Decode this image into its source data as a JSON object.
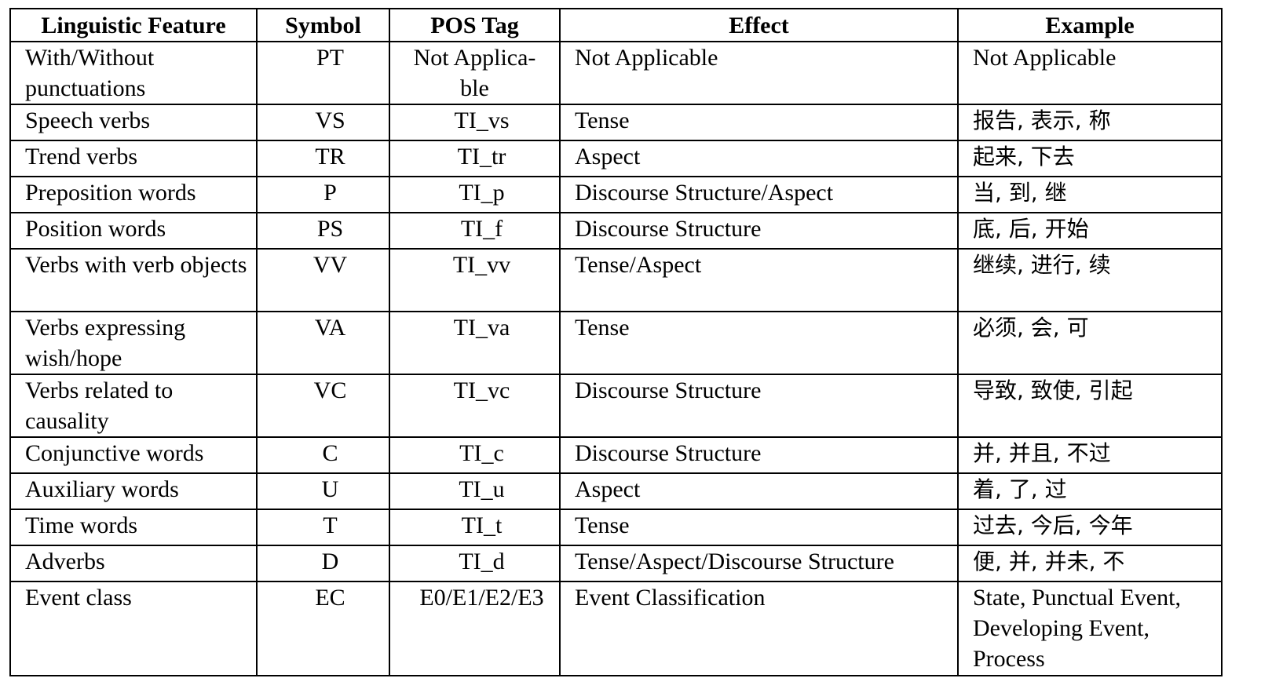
{
  "table": {
    "headers": [
      "Linguistic Feature",
      "Symbol",
      "POS Tag",
      "Effect",
      "Example"
    ],
    "rows": [
      {
        "feature": "With/Without punctuations",
        "symbol": "PT",
        "pos_tag": "Not Applica-ble",
        "effect": "Not Applicable",
        "example": "Not Applicable"
      },
      {
        "feature": "Speech verbs",
        "symbol": "VS",
        "pos_tag": "TI_vs",
        "effect": "Tense",
        "example": "报告, 表示, 称"
      },
      {
        "feature": "Trend verbs",
        "symbol": "TR",
        "pos_tag": "TI_tr",
        "effect": "Aspect",
        "example": "起来, 下去"
      },
      {
        "feature": "Preposition words",
        "symbol": "P",
        "pos_tag": "TI_p",
        "effect": "Discourse Structure/Aspect",
        "example": "当, 到, 继"
      },
      {
        "feature": "Position words",
        "symbol": "PS",
        "pos_tag": "TI_f",
        "effect": "Discourse Structure",
        "example": "底, 后, 开始"
      },
      {
        "feature": "Verbs with verb objects",
        "symbol": "VV",
        "pos_tag": "TI_vv",
        "effect": "Tense/Aspect",
        "example": "继续, 进行, 续"
      },
      {
        "feature": "Verbs expressing wish/hope",
        "symbol": "VA",
        "pos_tag": "TI_va",
        "effect": "Tense",
        "example": "必须, 会, 可"
      },
      {
        "feature": "Verbs related to causality",
        "symbol": "VC",
        "pos_tag": "TI_vc",
        "effect": "Discourse Structure",
        "example": "导致, 致使, 引起"
      },
      {
        "feature": "Conjunctive words",
        "symbol": "C",
        "pos_tag": "TI_c",
        "effect": "Discourse Structure",
        "example": "并, 并且, 不过"
      },
      {
        "feature": "Auxiliary words",
        "symbol": "U",
        "pos_tag": "TI_u",
        "effect": "Aspect",
        "example": "着, 了, 过"
      },
      {
        "feature": "Time words",
        "symbol": "T",
        "pos_tag": "TI_t",
        "effect": "Tense",
        "example": "过去, 今后, 今年"
      },
      {
        "feature": "Adverbs",
        "symbol": "D",
        "pos_tag": "TI_d",
        "effect": "Tense/Aspect/Discourse Structure",
        "example": "便, 并, 并未, 不"
      },
      {
        "feature": "Event class",
        "symbol": "EC",
        "pos_tag": "E0/E1/E2/E3",
        "effect": "Event Classification",
        "example": "State, Punctual Event, Developing Event, Process"
      }
    ]
  }
}
